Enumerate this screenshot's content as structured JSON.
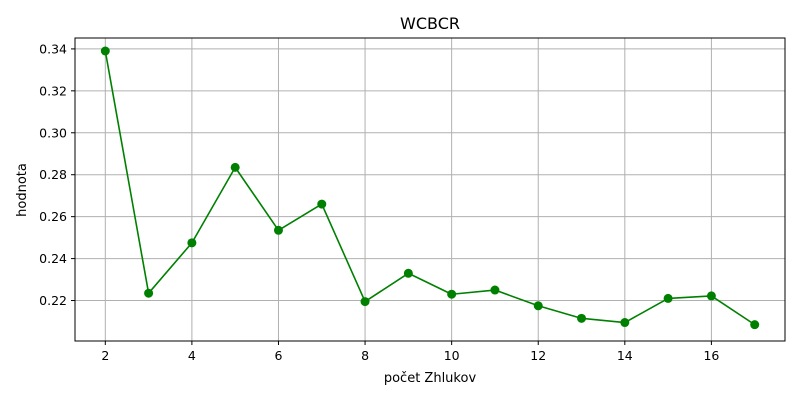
{
  "chart_data": {
    "type": "line",
    "title": "WCBCR",
    "xlabel": "počet Zhlukov",
    "ylabel": "hodnota",
    "x": [
      2,
      3,
      4,
      5,
      6,
      7,
      8,
      9,
      10,
      11,
      12,
      13,
      14,
      15,
      16,
      17
    ],
    "series": [
      {
        "values": [
          0.339,
          0.2235,
          0.2475,
          0.2835,
          0.2535,
          0.266,
          0.2195,
          0.233,
          0.223,
          0.225,
          0.2175,
          0.2115,
          0.2095,
          0.221,
          0.2222,
          0.2085
        ],
        "color": "#008000",
        "marker": "circle"
      }
    ],
    "xlim": [
      1.3,
      17.7
    ],
    "ylim": [
      0.2007,
      0.3452
    ],
    "xticks": [
      2,
      4,
      6,
      8,
      10,
      12,
      14,
      16
    ],
    "xtick_labels": [
      "2",
      "4",
      "6",
      "8",
      "10",
      "12",
      "14",
      "16"
    ],
    "yticks": [
      0.22,
      0.24,
      0.26,
      0.28,
      0.3,
      0.32,
      0.34
    ],
    "ytick_labels": [
      "0.22",
      "0.24",
      "0.26",
      "0.28",
      "0.30",
      "0.32",
      "0.34"
    ],
    "grid": true
  }
}
